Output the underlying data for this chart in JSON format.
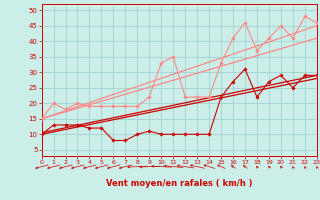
{
  "xlabel": "Vent moyen/en rafales ( km/h )",
  "x_ticks": [
    0,
    1,
    2,
    3,
    4,
    5,
    6,
    7,
    8,
    9,
    10,
    11,
    12,
    13,
    14,
    15,
    16,
    17,
    18,
    19,
    20,
    21,
    22,
    23
  ],
  "y_ticks": [
    5,
    10,
    15,
    20,
    25,
    30,
    35,
    40,
    45,
    50
  ],
  "xlim": [
    0,
    23
  ],
  "ylim": [
    3,
    52
  ],
  "bg_color": "#cceee8",
  "grid_color": "#99cccc",
  "axis_color": "#cc0000",
  "lines": [
    {
      "x": [
        0,
        1,
        2,
        3,
        4,
        5,
        6,
        7,
        8,
        9,
        10,
        11,
        12,
        13,
        14,
        15,
        16,
        17,
        18,
        19,
        20,
        21,
        22,
        23
      ],
      "y": [
        10,
        13,
        13,
        13,
        12,
        12,
        8,
        8,
        10,
        11,
        10,
        10,
        10,
        10,
        10,
        22,
        27,
        31,
        22,
        27,
        29,
        25,
        29,
        29
      ],
      "color": "#cc0000",
      "lw": 0.8,
      "marker": "D",
      "ms": 1.8,
      "zorder": 5
    },
    {
      "x": [
        0,
        1,
        2,
        3,
        4,
        5,
        6,
        7,
        8,
        9,
        10,
        11,
        12,
        13,
        14,
        15,
        16,
        17,
        18,
        19,
        20,
        21,
        22,
        23
      ],
      "y": [
        15,
        20,
        18,
        20,
        19,
        19,
        19,
        19,
        19,
        22,
        33,
        35,
        22,
        22,
        22,
        33,
        41,
        46,
        37,
        41,
        45,
        41,
        48,
        46
      ],
      "color": "#ff8888",
      "lw": 0.8,
      "marker": "D",
      "ms": 1.8,
      "zorder": 5
    },
    {
      "x": [
        0,
        23
      ],
      "y": [
        10.5,
        29
      ],
      "color": "#cc0000",
      "lw": 0.9,
      "marker": null,
      "ms": 0,
      "zorder": 3,
      "linestyle": "-"
    },
    {
      "x": [
        0,
        23
      ],
      "y": [
        10,
        28
      ],
      "color": "#cc0000",
      "lw": 0.9,
      "marker": null,
      "ms": 0,
      "zorder": 3,
      "linestyle": "-"
    },
    {
      "x": [
        0,
        23
      ],
      "y": [
        15,
        45
      ],
      "color": "#ff8888",
      "lw": 0.9,
      "marker": null,
      "ms": 0,
      "zorder": 3,
      "linestyle": "-"
    },
    {
      "x": [
        0,
        23
      ],
      "y": [
        15,
        41
      ],
      "color": "#ff8888",
      "lw": 0.9,
      "marker": null,
      "ms": 0,
      "zorder": 3,
      "linestyle": "-"
    }
  ],
  "wind_angles": [
    225,
    225,
    225,
    225,
    225,
    225,
    225,
    225,
    260,
    260,
    280,
    290,
    300,
    310,
    320,
    330,
    340,
    340,
    350,
    350,
    350,
    355,
    355,
    355
  ]
}
